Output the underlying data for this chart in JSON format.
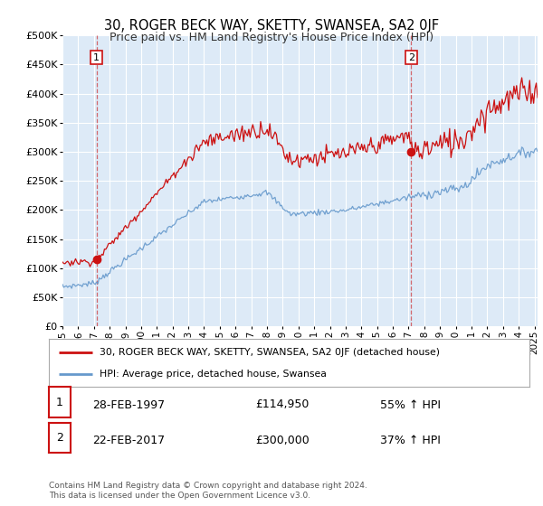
{
  "title": "30, ROGER BECK WAY, SKETTY, SWANSEA, SA2 0JF",
  "subtitle": "Price paid vs. HM Land Registry's House Price Index (HPI)",
  "background_color": "#ddeaf7",
  "sale1_price": 114950,
  "sale1_t": 1997.17,
  "sale2_price": 300000,
  "sale2_t": 2017.17,
  "legend_label1": "30, ROGER BECK WAY, SKETTY, SWANSEA, SA2 0JF (detached house)",
  "legend_label2": "HPI: Average price, detached house, Swansea",
  "footer": "Contains HM Land Registry data © Crown copyright and database right 2024.\nThis data is licensed under the Open Government Licence v3.0.",
  "ylim": [
    0,
    500000
  ],
  "yticks": [
    0,
    50000,
    100000,
    150000,
    200000,
    250000,
    300000,
    350000,
    400000,
    450000,
    500000
  ],
  "red_color": "#cc1111",
  "blue_color": "#6699cc",
  "xmin": 1995.0,
  "xmax": 2025.2,
  "row1_label": "28-FEB-1997",
  "row1_price": "£114,950",
  "row1_pct": "55% ↑ HPI",
  "row2_label": "22-FEB-2017",
  "row2_price": "£300,000",
  "row2_pct": "37% ↑ HPI"
}
